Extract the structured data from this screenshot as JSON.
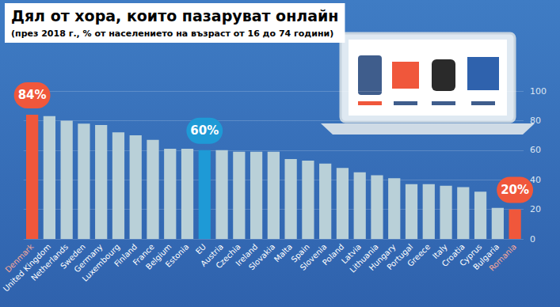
{
  "chart_data": {
    "type": "bar",
    "title": "Дял от хора, които пазаруват онлайн",
    "subtitle": "(през 2018 г., % от населението на възраст от 16 до 74 години)",
    "categories": [
      "Denmark",
      "United Kingdom",
      "Netherlands",
      "Sweden",
      "Germany",
      "Luxembourg",
      "Finland",
      "France",
      "Belgium",
      "Estonia",
      "EU",
      "Austria",
      "Czechia",
      "Ireland",
      "Slovakia",
      "Malta",
      "Spain",
      "Slovenia",
      "Poland",
      "Latvia",
      "Lithuania",
      "Hungary",
      "Portugal",
      "Greece",
      "Italy",
      "Croatia",
      "Cyprus",
      "Bulgaria",
      "Romania"
    ],
    "values": [
      84,
      83,
      80,
      78,
      77,
      72,
      70,
      67,
      61,
      61,
      60,
      60,
      59,
      59,
      59,
      54,
      53,
      51,
      48,
      45,
      43,
      41,
      37,
      37,
      36,
      35,
      32,
      21,
      20
    ],
    "value_labels": [
      "84%",
      null,
      null,
      null,
      null,
      null,
      null,
      null,
      null,
      null,
      "60%",
      null,
      null,
      null,
      null,
      null,
      null,
      null,
      null,
      null,
      null,
      null,
      null,
      null,
      null,
      null,
      null,
      null,
      "20%"
    ],
    "colors": [
      "#f0573b",
      "#b9d0d8",
      "#b9d0d8",
      "#b9d0d8",
      "#b9d0d8",
      "#b9d0d8",
      "#b9d0d8",
      "#b9d0d8",
      "#b9d0d8",
      "#b9d0d8",
      "#1e9ad6",
      "#b9d0d8",
      "#b9d0d8",
      "#b9d0d8",
      "#b9d0d8",
      "#b9d0d8",
      "#b9d0d8",
      "#b9d0d8",
      "#b9d0d8",
      "#b9d0d8",
      "#b9d0d8",
      "#b9d0d8",
      "#b9d0d8",
      "#b9d0d8",
      "#b9d0d8",
      "#b9d0d8",
      "#b9d0d8",
      "#b9d0d8",
      "#f0573b"
    ],
    "ylim": [
      0,
      100
    ],
    "yticks": [
      0,
      20,
      40,
      60,
      80,
      100
    ],
    "grid": true,
    "data_labels": true
  }
}
